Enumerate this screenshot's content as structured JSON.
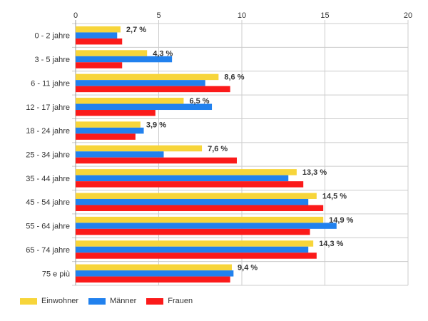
{
  "chart_data": {
    "type": "bar",
    "orientation": "horizontal",
    "title": "",
    "xlabel": "",
    "ylabel": "",
    "xlim": [
      0,
      20
    ],
    "x_ticks": [
      0,
      5,
      10,
      15,
      20
    ],
    "grid": true,
    "legend_position": "bottom-left",
    "categories": [
      "0 - 2 jahre",
      "3 - 5 jahre",
      "6 - 11 jahre",
      "12 - 17 jahre",
      "18 - 24 jahre",
      "25 - 34 jahre",
      "35 - 44 jahre",
      "45 - 54 jahre",
      "55 - 64 jahre",
      "65 - 74 jahre",
      "75 e più"
    ],
    "series": [
      {
        "name": "Einwohner",
        "color": "#f7d53a",
        "values": [
          2.7,
          4.3,
          8.6,
          6.5,
          3.9,
          7.6,
          13.3,
          14.5,
          14.9,
          14.3,
          9.4
        ]
      },
      {
        "name": "Männer",
        "color": "#2181ee",
        "values": [
          2.5,
          5.8,
          7.8,
          8.2,
          4.1,
          5.3,
          12.8,
          14.0,
          15.7,
          14.0,
          9.5
        ]
      },
      {
        "name": "Frauen",
        "color": "#fb1a1a",
        "values": [
          2.8,
          2.8,
          9.3,
          4.8,
          3.6,
          9.7,
          13.7,
          14.9,
          14.1,
          14.5,
          9.3
        ]
      }
    ],
    "data_labels": [
      "2,7 %",
      "4,3 %",
      "8,6 %",
      "6,5 %",
      "3,9 %",
      "7,6 %",
      "13,3 %",
      "14,5 %",
      "14,9 %",
      "14,3 %",
      "9,4 %"
    ]
  }
}
